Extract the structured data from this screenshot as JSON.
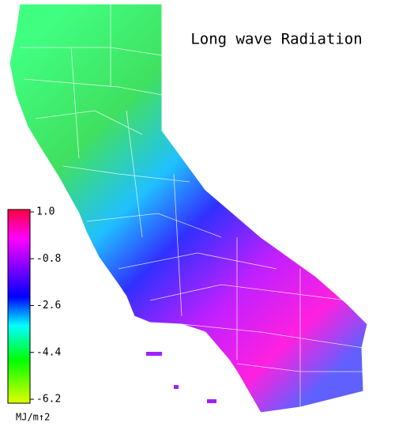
{
  "title": "Long wave Radiation",
  "legend": {
    "unit": "MJ/m↑2",
    "range": [
      -6.2,
      1.0
    ],
    "ticks": [
      {
        "value": 1.0,
        "label": "1.0"
      },
      -0.8,
      -2.6,
      -4.4,
      -6.2
    ]
  }
}
